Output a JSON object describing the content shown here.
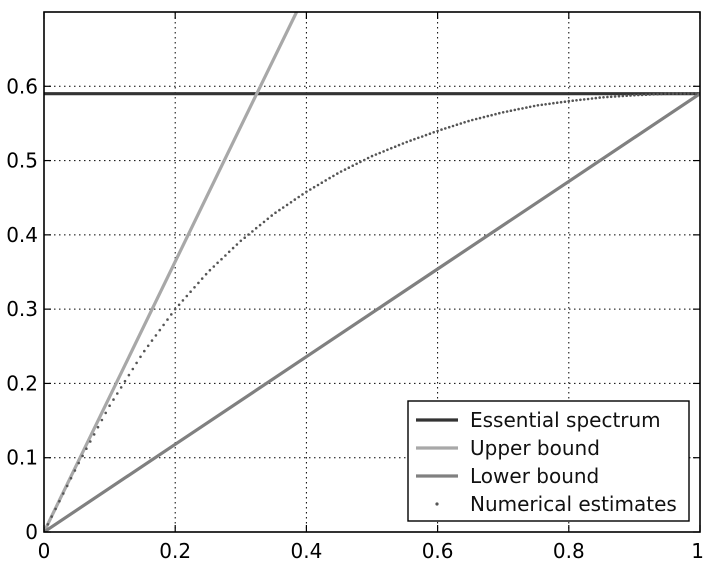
{
  "chart_data": {
    "type": "line",
    "title": "",
    "xlabel": "",
    "ylabel": "",
    "xlim": [
      0,
      1
    ],
    "ylim": [
      0,
      0.7
    ],
    "xticks": [
      0,
      0.2,
      0.4,
      0.6,
      0.8,
      1
    ],
    "xtick_labels": [
      "0",
      "0.2",
      "0.4",
      "0.6",
      "0.8",
      "1"
    ],
    "yticks": [
      0,
      0.1,
      0.2,
      0.3,
      0.4,
      0.5,
      0.6
    ],
    "ytick_labels": [
      "0",
      "0.1",
      "0.2",
      "0.3",
      "0.4",
      "0.5",
      "0.6"
    ],
    "grid": true,
    "grid_style": "dotted",
    "legend_position": "bottom-right",
    "series": [
      {
        "name": "Essential spectrum",
        "style": "line",
        "color": "#333333",
        "x": [
          0,
          1
        ],
        "y": [
          0.59,
          0.59
        ]
      },
      {
        "name": "Upper bound",
        "style": "line",
        "color": "#a8a8a8",
        "x": [
          0,
          0.1,
          0.2,
          0.3,
          0.385
        ],
        "y": [
          0,
          0.182,
          0.364,
          0.546,
          0.7
        ]
      },
      {
        "name": "Lower bound",
        "style": "line",
        "color": "#808080",
        "x": [
          0,
          0.2,
          0.4,
          0.6,
          0.8,
          1
        ],
        "y": [
          0,
          0.118,
          0.236,
          0.354,
          0.472,
          0.59
        ]
      },
      {
        "name": "Numerical estimates",
        "style": "markers",
        "color": "#555555",
        "x": [
          0,
          0.05,
          0.1,
          0.15,
          0.2,
          0.25,
          0.3,
          0.35,
          0.4,
          0.45,
          0.5,
          0.55,
          0.6,
          0.65,
          0.7,
          0.75,
          0.8,
          0.85,
          0.9,
          0.95,
          1
        ],
        "y": [
          0,
          0.088,
          0.17,
          0.24,
          0.3,
          0.35,
          0.392,
          0.428,
          0.458,
          0.484,
          0.506,
          0.524,
          0.54,
          0.554,
          0.565,
          0.574,
          0.58,
          0.585,
          0.588,
          0.59,
          0.59
        ]
      }
    ]
  }
}
